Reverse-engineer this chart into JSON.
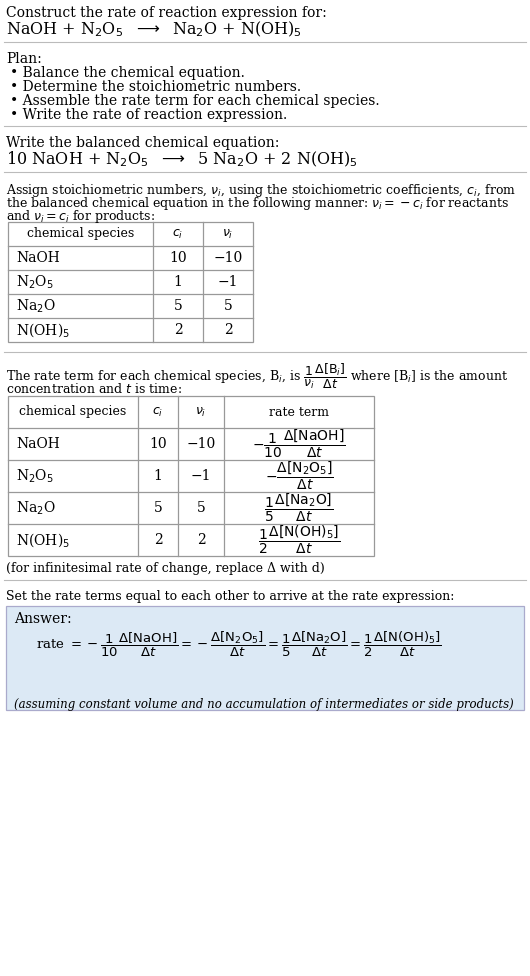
{
  "bg_color": "#ffffff",
  "answer_box_bg": "#dce9f5",
  "title_text": "Construct the rate of reaction expression for:",
  "plan_header": "Plan:",
  "plan_items": [
    "• Balance the chemical equation.",
    "• Determine the stoichiometric numbers.",
    "• Assemble the rate term for each chemical species.",
    "• Write the rate of reaction expression."
  ],
  "balanced_header": "Write the balanced chemical equation:",
  "set_equal_header": "Set the rate terms equal to each other to arrive at the rate expression:",
  "answer_label": "Answer:",
  "infinitesimal_note": "(for infinitesimal rate of change, replace Δ with d)",
  "footnote": "(assuming constant volume and no accumulation of intermediates or side products)",
  "table1_species": [
    "NaOH",
    "N$_2$O$_5$",
    "Na$_2$O",
    "N(OH)$_5$"
  ],
  "table1_ci": [
    "10",
    "1",
    "5",
    "2"
  ],
  "table1_nu": [
    "−10",
    "−1",
    "5",
    "2"
  ],
  "table2_species": [
    "NaOH",
    "N$_2$O$_5$",
    "Na$_2$O",
    "N(OH)$_5$"
  ],
  "table2_ci": [
    "10",
    "1",
    "5",
    "2"
  ],
  "table2_nu": [
    "−10",
    "−1",
    "5",
    "2"
  ]
}
